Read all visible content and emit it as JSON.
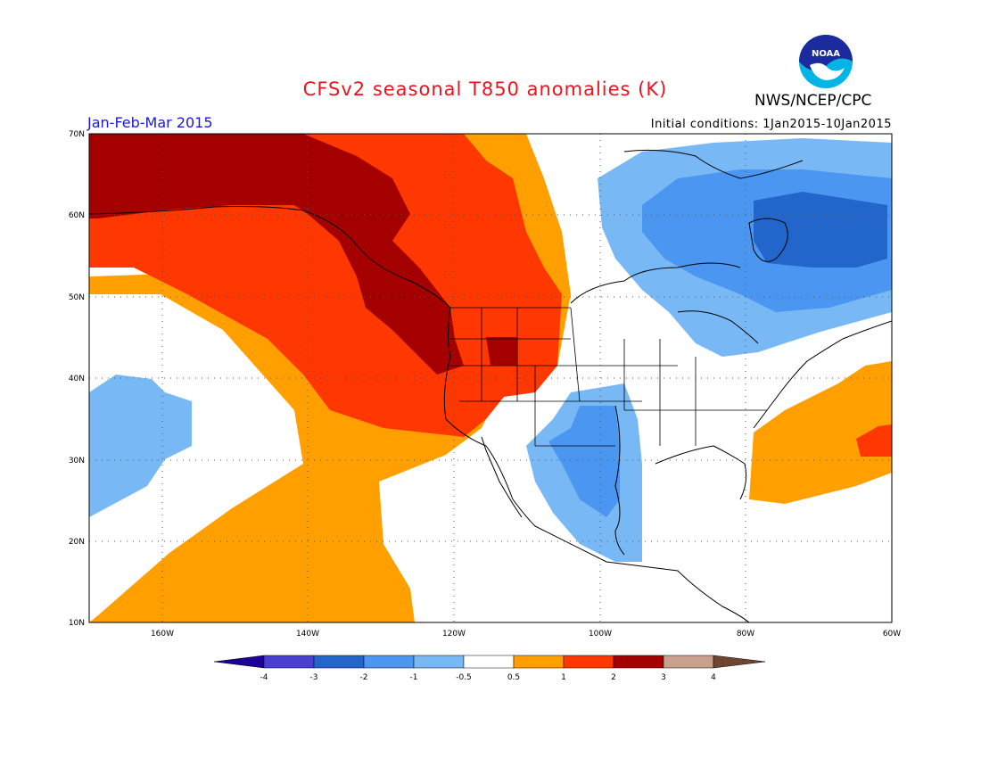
{
  "title": "CFSv2 seasonal T850 anomalies (K)",
  "agency": "NWS/NCEP/CPC",
  "logo_text": "NOAA",
  "period": "Jan-Feb-Mar 2015",
  "initial_conditions": "Initial conditions: 1Jan2015-10Jan2015",
  "lat_labels": [
    "70N",
    "60N",
    "50N",
    "40N",
    "30N",
    "20N",
    "10N"
  ],
  "lon_labels": [
    "160W",
    "140W",
    "120W",
    "100W",
    "80W",
    "60W"
  ],
  "colorbar": {
    "labels": [
      "-4",
      "-3",
      "-2",
      "-1",
      "-0.5",
      "0.5",
      "1",
      "2",
      "3",
      "4"
    ],
    "colors": [
      "#1e0096",
      "#4b3fd2",
      "#2266cc",
      "#4a96f0",
      "#78b9f5",
      "#ffffff",
      "#ffa000",
      "#ff3700",
      "#a50000",
      "#c8a08c",
      "#6e4632"
    ]
  },
  "colors": {
    "title": "#e8141e",
    "period": "#1a1adb"
  }
}
